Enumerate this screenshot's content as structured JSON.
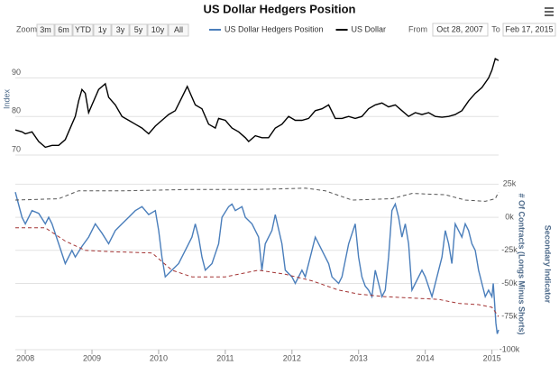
{
  "ui": {
    "zoom_label": "Zoom",
    "buttons": [
      "3m",
      "6m",
      "YTD",
      "1y",
      "3y",
      "5y",
      "10y",
      "All"
    ],
    "from_label": "From",
    "from": "Oct 28, 2007",
    "to_label": "To",
    "to": "Feb 17, 2015"
  },
  "chart_data": [
    {
      "type": "line",
      "title": "US Dollar Hedgers Position",
      "ylabel": "Index",
      "xlim": [
        2007.85,
        2015.1
      ],
      "ylim": [
        70,
        99
      ],
      "yticks": [
        70,
        80,
        90
      ],
      "grid": true,
      "series": [
        {
          "name": "US Dollar",
          "color": "#000000",
          "x": [
            2007.85,
            2007.95,
            2008.0,
            2008.1,
            2008.2,
            2008.3,
            2008.4,
            2008.5,
            2008.6,
            2008.65,
            2008.75,
            2008.8,
            2008.85,
            2008.9,
            2008.95,
            2009.0,
            2009.1,
            2009.2,
            2009.25,
            2009.35,
            2009.45,
            2009.55,
            2009.65,
            2009.75,
            2009.85,
            2009.95,
            2010.05,
            2010.15,
            2010.25,
            2010.35,
            2010.43,
            2010.55,
            2010.65,
            2010.75,
            2010.85,
            2010.9,
            2011.0,
            2011.1,
            2011.2,
            2011.3,
            2011.35,
            2011.45,
            2011.55,
            2011.65,
            2011.75,
            2011.85,
            2011.95,
            2012.05,
            2012.15,
            2012.25,
            2012.35,
            2012.45,
            2012.55,
            2012.65,
            2012.75,
            2012.85,
            2012.95,
            2013.05,
            2013.15,
            2013.25,
            2013.35,
            2013.45,
            2013.55,
            2013.65,
            2013.75,
            2013.85,
            2013.95,
            2014.05,
            2014.15,
            2014.25,
            2014.35,
            2014.45,
            2014.55,
            2014.65,
            2014.75,
            2014.85,
            2014.95,
            2015.0,
            2015.05,
            2015.1
          ],
          "values": [
            76.5,
            76,
            75.5,
            76,
            73.5,
            72,
            72.5,
            72.5,
            74,
            76,
            80,
            84,
            87,
            86,
            81,
            83,
            87,
            88.5,
            85,
            83,
            80,
            79,
            78,
            77,
            75.5,
            77.5,
            79,
            80.5,
            81.5,
            85,
            87.8,
            83,
            82,
            78,
            77,
            79.5,
            79,
            77,
            76,
            74.5,
            73.5,
            75,
            74.5,
            74.5,
            77,
            78,
            80,
            79,
            79,
            79.5,
            81.5,
            82,
            83,
            79.5,
            79.5,
            80,
            79.5,
            80,
            82,
            83,
            83.5,
            82.5,
            83,
            81.5,
            80,
            81,
            80.5,
            81,
            80,
            79.8,
            80,
            80.5,
            81.5,
            84,
            86,
            87.5,
            90,
            92,
            95,
            94.5
          ]
        }
      ]
    },
    {
      "type": "line",
      "ylabel": "# Of Contracts (Longs Minus Shorts)",
      "secondary_label": "Secondary Indicator",
      "xlim": [
        2007.85,
        2015.1
      ],
      "xticks": [
        2008,
        2009,
        2010,
        2011,
        2012,
        2013,
        2014,
        2015
      ],
      "ylim": [
        -100000,
        30000
      ],
      "yticks": [
        {
          "value": -100000,
          "label": "-100k"
        },
        {
          "value": -75000,
          "label": "-75k"
        },
        {
          "value": -50000,
          "label": "-50k"
        },
        {
          "value": -25000,
          "label": "-25k"
        },
        {
          "value": 0,
          "label": "0k"
        },
        {
          "value": 25000,
          "label": "25k"
        }
      ],
      "grid": true,
      "series": [
        {
          "name": "US Dollar Hedgers Position",
          "color": "#4a7ebb",
          "x": [
            2007.85,
            2007.95,
            2008.0,
            2008.1,
            2008.2,
            2008.3,
            2008.35,
            2008.4,
            2008.5,
            2008.6,
            2008.7,
            2008.75,
            2008.85,
            2008.95,
            2009.05,
            2009.15,
            2009.25,
            2009.35,
            2009.45,
            2009.55,
            2009.65,
            2009.75,
            2009.85,
            2009.95,
            2010.0,
            2010.05,
            2010.1,
            2010.2,
            2010.3,
            2010.4,
            2010.5,
            2010.55,
            2010.6,
            2010.65,
            2010.7,
            2010.8,
            2010.9,
            2010.95,
            2011.05,
            2011.1,
            2011.15,
            2011.25,
            2011.3,
            2011.4,
            2011.5,
            2011.55,
            2011.6,
            2011.7,
            2011.75,
            2011.85,
            2011.9,
            2012.0,
            2012.05,
            2012.15,
            2012.2,
            2012.3,
            2012.35,
            2012.45,
            2012.55,
            2012.6,
            2012.7,
            2012.75,
            2012.85,
            2012.95,
            2013.0,
            2013.05,
            2013.1,
            2013.15,
            2013.2,
            2013.25,
            2013.3,
            2013.35,
            2013.4,
            2013.45,
            2013.5,
            2013.55,
            2013.6,
            2013.65,
            2013.7,
            2013.75,
            2013.8,
            2013.85,
            2013.95,
            2014.0,
            2014.1,
            2014.2,
            2014.25,
            2014.3,
            2014.35,
            2014.4,
            2014.45,
            2014.5,
            2014.55,
            2014.6,
            2014.65,
            2014.7,
            2014.75,
            2014.8,
            2014.85,
            2014.9,
            2014.95,
            2015.0,
            2015.02,
            2015.04,
            2015.06,
            2015.08,
            2015.1
          ],
          "values": [
            19000,
            0,
            -5000,
            5000,
            3000,
            -5000,
            0,
            -5000,
            -20000,
            -35000,
            -25000,
            -30000,
            -22000,
            -15000,
            -5000,
            -12000,
            -20000,
            -10000,
            -5000,
            0,
            5000,
            8000,
            2000,
            5000,
            -10000,
            -30000,
            -45000,
            -40000,
            -35000,
            -25000,
            -15000,
            -5000,
            -15000,
            -30000,
            -40000,
            -35000,
            -20000,
            0,
            8000,
            10000,
            5000,
            8000,
            0,
            -5000,
            -15000,
            -40000,
            -20000,
            -10000,
            2000,
            -20000,
            -40000,
            -45000,
            -50000,
            -40000,
            -45000,
            -25000,
            -15000,
            -25000,
            -35000,
            -45000,
            -50000,
            -45000,
            -20000,
            -5000,
            -30000,
            -45000,
            -52000,
            -55000,
            -60000,
            -40000,
            -50000,
            -60000,
            -55000,
            -30000,
            5000,
            10000,
            0,
            -15000,
            -5000,
            -20000,
            -55000,
            -50000,
            -40000,
            -45000,
            -60000,
            -40000,
            -30000,
            -10000,
            -20000,
            -35000,
            -5000,
            -10000,
            -15000,
            -5000,
            -10000,
            -20000,
            -25000,
            -40000,
            -50000,
            -60000,
            -55000,
            -60000,
            -50000,
            -65000,
            -80000,
            -88000,
            -85000
          ]
        },
        {
          "color": "#555555",
          "dash": true,
          "x": [
            2007.85,
            2008.5,
            2008.8,
            2009.5,
            2010.5,
            2011.5,
            2012.2,
            2012.5,
            2012.9,
            2013.5,
            2013.8,
            2014.3,
            2014.6,
            2014.9,
            2015.05,
            2015.1
          ],
          "values": [
            13000,
            14000,
            20000,
            20000,
            21000,
            21000,
            22000,
            20000,
            13000,
            14000,
            18000,
            17000,
            13000,
            12000,
            14000,
            19000
          ]
        },
        {
          "color": "#a33333",
          "dash": true,
          "x": [
            2007.85,
            2008.3,
            2008.6,
            2008.9,
            2009.3,
            2009.9,
            2010.2,
            2010.5,
            2011.0,
            2011.5,
            2011.9,
            2012.3,
            2012.7,
            2013.0,
            2013.4,
            2013.8,
            2014.2,
            2014.5,
            2014.8,
            2015.0,
            2015.1
          ],
          "values": [
            -8000,
            -8000,
            -18000,
            -25000,
            -26000,
            -27000,
            -40000,
            -45000,
            -45000,
            -40000,
            -43000,
            -48000,
            -55000,
            -58000,
            -60000,
            -61000,
            -62000,
            -65000,
            -66000,
            -68000,
            -75000
          ]
        }
      ]
    }
  ]
}
